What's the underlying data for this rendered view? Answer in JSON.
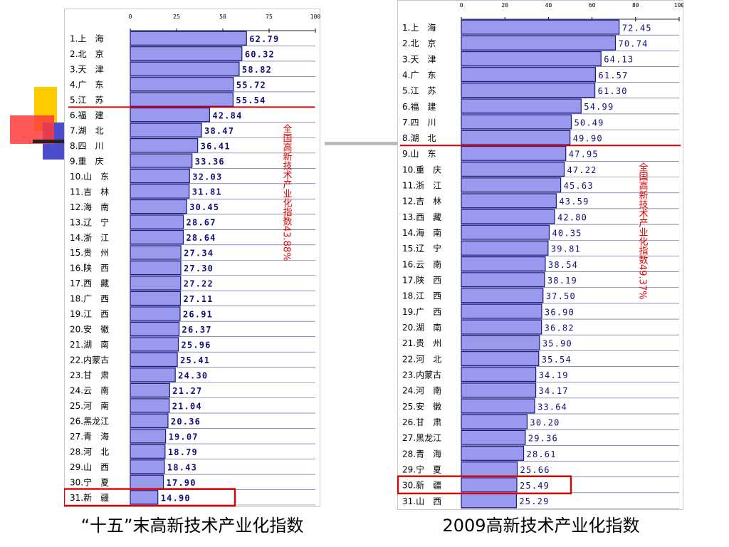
{
  "slide": {
    "connector_color": "#bbbbbb",
    "deco_colors": {
      "yellow": "#ffcc00",
      "red": "#ff3b3b",
      "blue": "#4d4dcc",
      "dark": "#222222"
    }
  },
  "chart_data": [
    {
      "type": "bar",
      "orientation": "horizontal",
      "caption": "“十五”末高新技术产业化指数",
      "xlim": [
        0,
        100
      ],
      "x_ticks": [
        "0",
        "25",
        "50",
        "75",
        "100"
      ],
      "categories": [
        "1.上　海",
        "2.北　京",
        "3.天　津",
        "4.广　东",
        "5.江　苏",
        "6.福　建",
        "7.湖　北",
        "8.四　川",
        "9.重　庆",
        "10.山　东",
        "11.吉　林",
        "12.海　南",
        "13.辽　宁",
        "14.浙　江",
        "15.贵　州",
        "16.陕　西",
        "17.西　藏",
        "18.广　西",
        "19.江　西",
        "20.安　徽",
        "21.湖　南",
        "22.内蒙古",
        "23.甘　肃",
        "24.云　南",
        "25.河　南",
        "26.黑龙江",
        "27.青　海",
        "28.河　北",
        "29.山　西",
        "30.宁　夏",
        "31.新　疆"
      ],
      "values": [
        62.79,
        60.32,
        58.82,
        55.72,
        55.54,
        42.84,
        38.47,
        36.41,
        33.36,
        32.03,
        31.81,
        30.45,
        28.67,
        28.64,
        27.34,
        27.3,
        27.22,
        27.11,
        26.91,
        26.37,
        25.96,
        25.41,
        24.3,
        21.27,
        21.04,
        20.36,
        19.07,
        18.79,
        18.43,
        17.9,
        14.9
      ],
      "value_labels": [
        "62.79",
        "60.32",
        "58.82",
        "55.72",
        "55.54",
        "42.84",
        "38.47",
        "36.41",
        "33.36",
        "32.03",
        "31.81",
        "30.45",
        "28.67",
        "28.64",
        "27.34",
        "27.30",
        "27.22",
        "27.11",
        "26.91",
        "26.37",
        "25.96",
        "25.41",
        "24.30",
        "21.27",
        "21.04",
        "20.36",
        "19.07",
        "18.79",
        "18.43",
        "17.90",
        "14.90"
      ],
      "annotation": "全国高新技术产业化指数43.88%",
      "divider_after_index": 4,
      "highlight_index": 30,
      "bar_color": "#9999ee",
      "bar_edge_color": "#1a1a80",
      "value_text_color": "#10107a",
      "divider_color": "#dd0000",
      "highlight_color": "#e00000"
    },
    {
      "type": "bar",
      "orientation": "horizontal",
      "caption": "2009高新技术产业化指数",
      "xlim": [
        0,
        100
      ],
      "x_ticks": [
        "0",
        "20",
        "40",
        "60",
        "80",
        "100"
      ],
      "categories": [
        "1.上　海",
        "2.北　京",
        "3.天　津",
        "4.广　东",
        "5.江　苏",
        "6.福　建",
        "7.四　川",
        "8.湖　北",
        "9.山　东",
        "10.重　庆",
        "11.浙　江",
        "12.吉　林",
        "13.西　藏",
        "14.海　南",
        "15.辽　宁",
        "16.云　南",
        "17.陕　西",
        "18.江　西",
        "19.广　西",
        "20.湖　南",
        "21.贵　州",
        "22.河　北",
        "23.内蒙古",
        "24.河　南",
        "25.安　徽",
        "26.甘　肃",
        "27.黑龙江",
        "28.青　海",
        "29.宁　夏",
        "30.新　疆",
        "31.山　西"
      ],
      "values": [
        72.45,
        70.74,
        64.13,
        61.57,
        61.3,
        54.99,
        50.49,
        49.9,
        47.95,
        47.22,
        45.63,
        43.59,
        42.8,
        40.35,
        39.81,
        38.54,
        38.19,
        37.5,
        36.9,
        36.82,
        35.9,
        35.54,
        34.19,
        34.17,
        33.64,
        30.2,
        29.36,
        28.61,
        25.66,
        25.49,
        25.29
      ],
      "value_labels": [
        "72.45",
        "70.74",
        "64.13",
        "61.57",
        "61.30",
        "54.99",
        "50.49",
        "49.90",
        "47.95",
        "47.22",
        "45.63",
        "43.59",
        "42.80",
        "40.35",
        "39.81",
        "38.54",
        "38.19",
        "37.50",
        "36.90",
        "36.82",
        "35.90",
        "35.54",
        "34.19",
        "34.17",
        "33.64",
        "30.20",
        "29.36",
        "28.61",
        "25.66",
        "25.49",
        "25.29"
      ],
      "annotation": "全国高新技术产业化指数49.37%",
      "divider_after_index": 7,
      "highlight_index": 29,
      "bar_color": "#9999ee",
      "bar_edge_color": "#1a1a80",
      "value_text_color": "#10107a",
      "divider_color": "#dd0000",
      "highlight_color": "#e00000"
    }
  ]
}
